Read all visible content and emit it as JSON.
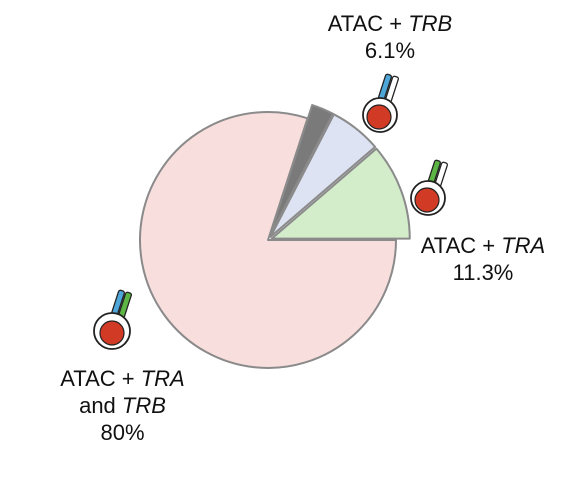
{
  "chart_data": {
    "type": "pie",
    "slices": [
      {
        "key": "tra_trb",
        "value": 80.0,
        "color": "#f9dede"
      },
      {
        "key": "tra",
        "value": 11.3,
        "color": "#d3ecca"
      },
      {
        "key": "trb",
        "value": 6.1,
        "color": "#dde3f2"
      },
      {
        "key": "other",
        "value": 2.6,
        "color": "#7a7a7a"
      }
    ],
    "labels": {
      "trb": {
        "prefix": "ATAC + ",
        "gene": "TRB",
        "percent": "6.1%"
      },
      "tra": {
        "prefix": "ATAC + ",
        "gene": "TRA",
        "percent": "11.3%"
      },
      "tra_trb": {
        "prefix": "ATAC + ",
        "gene": "TRA",
        "joiner": "and ",
        "gene2": "TRB",
        "percent": "80%"
      }
    },
    "icons": {
      "cell_color": "#d13a25",
      "tra_chain_color": "#5cb545",
      "trb_chain_color": "#4fa6d8"
    }
  }
}
